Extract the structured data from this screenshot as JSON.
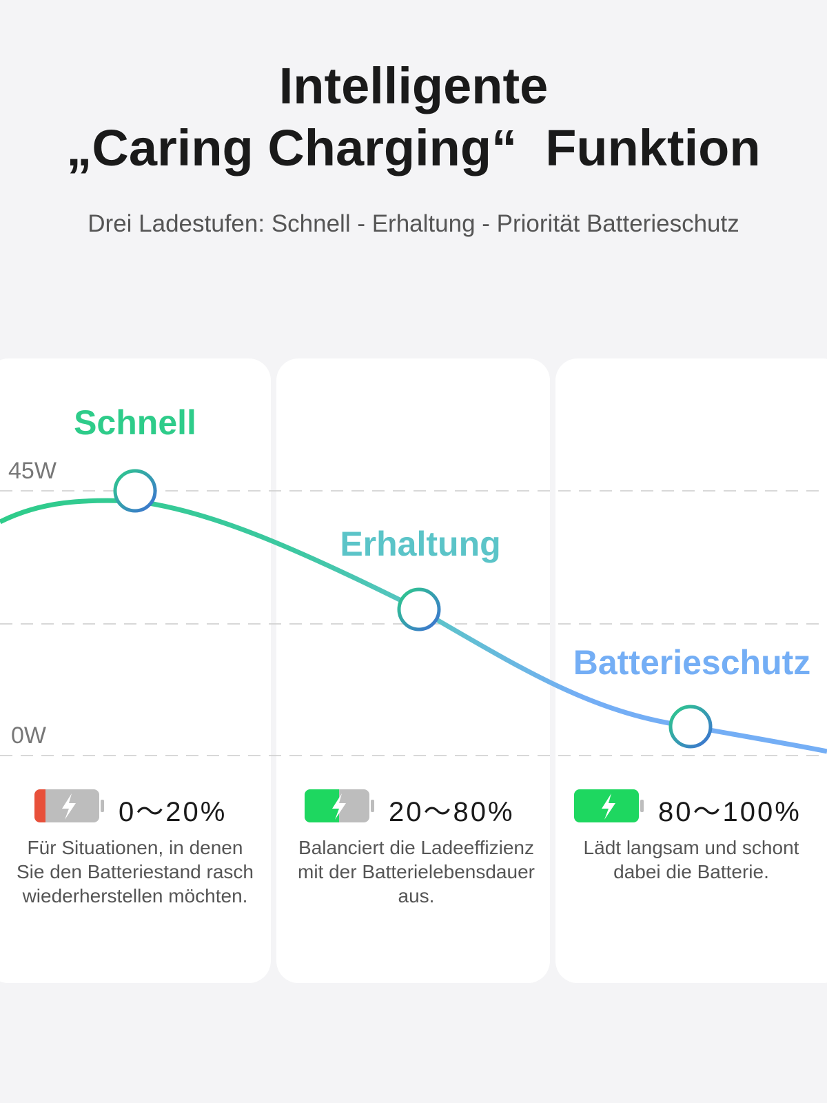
{
  "header": {
    "title_lines": [
      "Intelligente",
      "„Caring Charging“  Funktion"
    ],
    "subtitle": "Drei Ladestufen: Schnell - Erhaltung - Priorität Batterieschutz"
  },
  "axis_labels": [
    "45W",
    "0W"
  ],
  "stages": [
    {
      "name": "Schnell",
      "range": "0～20%",
      "description": "Für Situationen, in denen Sie den Batteriestand rasch wiederherstellen möchten."
    },
    {
      "name": "Erhaltung",
      "range": "20～80%",
      "description": "Balanciert die Ladeeffizienz mit der Batterielebensdauer aus."
    },
    {
      "name": "Batterieschutz",
      "range": "80～100%",
      "description": "Lädt langsam und schont dabei die Batterie."
    }
  ]
}
